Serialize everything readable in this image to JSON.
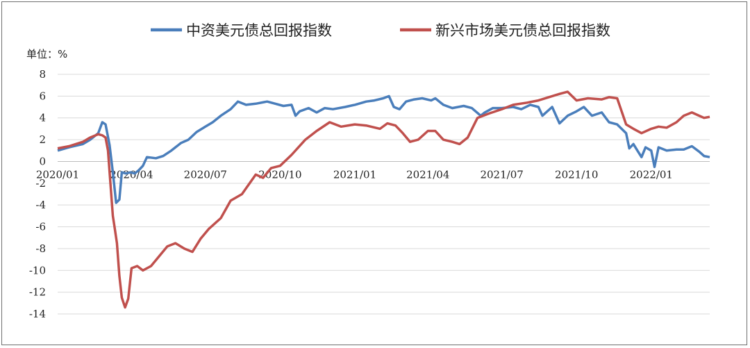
{
  "chart_data": {
    "type": "line",
    "unit_label": "单位：%",
    "ylim": [
      -14,
      8
    ],
    "yticks": [
      8,
      6,
      4,
      2,
      0,
      -2,
      -4,
      -6,
      -8,
      -10,
      -12,
      -14
    ],
    "xlim": [
      "2020-01-01",
      "2022-03-14"
    ],
    "xticks": [
      {
        "label": "2020/01",
        "date": "2020-01-01"
      },
      {
        "label": "2020/04",
        "date": "2020-04-01"
      },
      {
        "label": "2020/07",
        "date": "2020-07-01"
      },
      {
        "label": "2020/10",
        "date": "2020-10-01"
      },
      {
        "label": "2021/01",
        "date": "2021-01-01"
      },
      {
        "label": "2021/04",
        "date": "2021-04-01"
      },
      {
        "label": "2021/07",
        "date": "2021-07-01"
      },
      {
        "label": "2021/10",
        "date": "2021-10-01"
      },
      {
        "label": "2022/01",
        "date": "2022-01-01"
      }
    ],
    "grid": true,
    "legend_position": "top",
    "series": [
      {
        "name": "中资美元债总回报指数",
        "color": "#4a7ebb",
        "points": [
          [
            "2020-01-01",
            1.0
          ],
          [
            "2020-01-15",
            1.3
          ],
          [
            "2020-02-01",
            1.6
          ],
          [
            "2020-02-10",
            2.0
          ],
          [
            "2020-02-20",
            2.6
          ],
          [
            "2020-02-25",
            3.6
          ],
          [
            "2020-02-29",
            3.4
          ],
          [
            "2020-03-05",
            1.5
          ],
          [
            "2020-03-09",
            -1.0
          ],
          [
            "2020-03-13",
            -3.8
          ],
          [
            "2020-03-17",
            -3.5
          ],
          [
            "2020-03-20",
            -1.0
          ],
          [
            "2020-03-25",
            -1.1
          ],
          [
            "2020-03-31",
            -1.0
          ],
          [
            "2020-04-05",
            -1.1
          ],
          [
            "2020-04-10",
            -0.8
          ],
          [
            "2020-04-15",
            -0.4
          ],
          [
            "2020-04-20",
            0.4
          ],
          [
            "2020-05-01",
            0.3
          ],
          [
            "2020-05-10",
            0.5
          ],
          [
            "2020-05-20",
            1.0
          ],
          [
            "2020-06-01",
            1.7
          ],
          [
            "2020-06-10",
            2.0
          ],
          [
            "2020-06-20",
            2.7
          ],
          [
            "2020-07-01",
            3.2
          ],
          [
            "2020-07-10",
            3.6
          ],
          [
            "2020-07-20",
            4.2
          ],
          [
            "2020-08-01",
            4.8
          ],
          [
            "2020-08-10",
            5.5
          ],
          [
            "2020-08-20",
            5.2
          ],
          [
            "2020-09-01",
            5.3
          ],
          [
            "2020-09-15",
            5.5
          ],
          [
            "2020-09-25",
            5.3
          ],
          [
            "2020-10-05",
            5.1
          ],
          [
            "2020-10-15",
            5.2
          ],
          [
            "2020-10-20",
            4.2
          ],
          [
            "2020-10-25",
            4.6
          ],
          [
            "2020-11-05",
            4.9
          ],
          [
            "2020-11-15",
            4.5
          ],
          [
            "2020-11-25",
            4.9
          ],
          [
            "2020-12-05",
            4.8
          ],
          [
            "2020-12-20",
            5.0
          ],
          [
            "2021-01-01",
            5.2
          ],
          [
            "2021-01-15",
            5.5
          ],
          [
            "2021-01-25",
            5.6
          ],
          [
            "2021-02-05",
            5.8
          ],
          [
            "2021-02-12",
            6.0
          ],
          [
            "2021-02-18",
            5.0
          ],
          [
            "2021-02-25",
            4.8
          ],
          [
            "2021-03-05",
            5.5
          ],
          [
            "2021-03-15",
            5.7
          ],
          [
            "2021-03-25",
            5.8
          ],
          [
            "2021-04-05",
            5.6
          ],
          [
            "2021-04-10",
            5.8
          ],
          [
            "2021-04-20",
            5.2
          ],
          [
            "2021-05-01",
            4.9
          ],
          [
            "2021-05-15",
            5.1
          ],
          [
            "2021-05-25",
            4.9
          ],
          [
            "2021-06-05",
            4.2
          ],
          [
            "2021-06-10",
            4.5
          ],
          [
            "2021-06-20",
            4.9
          ],
          [
            "2021-07-01",
            4.9
          ],
          [
            "2021-07-15",
            5.0
          ],
          [
            "2021-07-25",
            4.8
          ],
          [
            "2021-08-05",
            5.2
          ],
          [
            "2021-08-15",
            5.0
          ],
          [
            "2021-08-20",
            4.2
          ],
          [
            "2021-09-01",
            5.0
          ],
          [
            "2021-09-10",
            3.5
          ],
          [
            "2021-09-20",
            4.2
          ],
          [
            "2021-10-01",
            4.6
          ],
          [
            "2021-10-10",
            5.0
          ],
          [
            "2021-10-20",
            4.2
          ],
          [
            "2021-11-01",
            4.5
          ],
          [
            "2021-11-10",
            3.6
          ],
          [
            "2021-11-20",
            3.4
          ],
          [
            "2021-12-01",
            2.6
          ],
          [
            "2021-12-05",
            1.2
          ],
          [
            "2021-12-10",
            1.6
          ],
          [
            "2021-12-15",
            1.0
          ],
          [
            "2021-12-20",
            0.4
          ],
          [
            "2021-12-25",
            1.3
          ],
          [
            "2022-01-01",
            1.0
          ],
          [
            "2022-01-05",
            -0.5
          ],
          [
            "2022-01-10",
            1.3
          ],
          [
            "2022-01-20",
            1.0
          ],
          [
            "2022-02-01",
            1.1
          ],
          [
            "2022-02-10",
            1.1
          ],
          [
            "2022-02-20",
            1.4
          ],
          [
            "2022-03-01",
            0.9
          ],
          [
            "2022-03-07",
            0.5
          ],
          [
            "2022-03-14",
            0.4
          ]
        ]
      },
      {
        "name": "新兴市场美元债总回报指数",
        "color": "#c0504d",
        "points": [
          [
            "2020-01-01",
            1.2
          ],
          [
            "2020-01-15",
            1.4
          ],
          [
            "2020-02-01",
            1.8
          ],
          [
            "2020-02-10",
            2.2
          ],
          [
            "2020-02-20",
            2.5
          ],
          [
            "2020-02-25",
            2.4
          ],
          [
            "2020-02-29",
            2.2
          ],
          [
            "2020-03-03",
            1.0
          ],
          [
            "2020-03-06",
            -2.0
          ],
          [
            "2020-03-09",
            -5.0
          ],
          [
            "2020-03-11",
            -6.0
          ],
          [
            "2020-03-14",
            -7.5
          ],
          [
            "2020-03-17",
            -10.5
          ],
          [
            "2020-03-20",
            -12.5
          ],
          [
            "2020-03-24",
            -13.4
          ],
          [
            "2020-03-28",
            -12.6
          ],
          [
            "2020-04-01",
            -9.8
          ],
          [
            "2020-04-08",
            -9.6
          ],
          [
            "2020-04-15",
            -10.0
          ],
          [
            "2020-04-25",
            -9.6
          ],
          [
            "2020-05-05",
            -8.7
          ],
          [
            "2020-05-15",
            -7.8
          ],
          [
            "2020-05-25",
            -7.5
          ],
          [
            "2020-06-05",
            -8.0
          ],
          [
            "2020-06-15",
            -8.3
          ],
          [
            "2020-06-25",
            -7.1
          ],
          [
            "2020-07-05",
            -6.2
          ],
          [
            "2020-07-20",
            -5.2
          ],
          [
            "2020-08-01",
            -3.6
          ],
          [
            "2020-08-15",
            -3.0
          ],
          [
            "2020-09-01",
            -1.2
          ],
          [
            "2020-09-10",
            -1.5
          ],
          [
            "2020-09-20",
            -0.6
          ],
          [
            "2020-10-01",
            -0.4
          ],
          [
            "2020-10-15",
            0.6
          ],
          [
            "2020-11-01",
            2.0
          ],
          [
            "2020-11-15",
            2.8
          ],
          [
            "2020-12-01",
            3.6
          ],
          [
            "2020-12-15",
            3.2
          ],
          [
            "2021-01-01",
            3.4
          ],
          [
            "2021-01-15",
            3.3
          ],
          [
            "2021-02-01",
            3.0
          ],
          [
            "2021-02-10",
            3.5
          ],
          [
            "2021-02-20",
            3.3
          ],
          [
            "2021-03-01",
            2.6
          ],
          [
            "2021-03-10",
            1.8
          ],
          [
            "2021-03-20",
            2.0
          ],
          [
            "2021-04-01",
            2.8
          ],
          [
            "2021-04-10",
            2.8
          ],
          [
            "2021-04-20",
            2.0
          ],
          [
            "2021-05-01",
            1.8
          ],
          [
            "2021-05-10",
            1.6
          ],
          [
            "2021-05-20",
            2.2
          ],
          [
            "2021-06-01",
            4.0
          ],
          [
            "2021-06-15",
            4.4
          ],
          [
            "2021-07-01",
            4.8
          ],
          [
            "2021-07-15",
            5.2
          ],
          [
            "2021-08-01",
            5.4
          ],
          [
            "2021-08-15",
            5.6
          ],
          [
            "2021-09-01",
            6.0
          ],
          [
            "2021-09-10",
            6.2
          ],
          [
            "2021-09-20",
            6.4
          ],
          [
            "2021-10-01",
            5.6
          ],
          [
            "2021-10-15",
            5.8
          ],
          [
            "2021-11-01",
            5.7
          ],
          [
            "2021-11-10",
            5.9
          ],
          [
            "2021-11-20",
            5.8
          ],
          [
            "2021-12-01",
            3.4
          ],
          [
            "2021-12-10",
            3.0
          ],
          [
            "2021-12-20",
            2.6
          ],
          [
            "2022-01-01",
            3.0
          ],
          [
            "2022-01-10",
            3.2
          ],
          [
            "2022-01-20",
            3.1
          ],
          [
            "2022-02-01",
            3.6
          ],
          [
            "2022-02-10",
            4.2
          ],
          [
            "2022-02-20",
            4.5
          ],
          [
            "2022-03-01",
            4.2
          ],
          [
            "2022-03-07",
            4.0
          ],
          [
            "2022-03-14",
            4.1
          ]
        ]
      }
    ]
  }
}
